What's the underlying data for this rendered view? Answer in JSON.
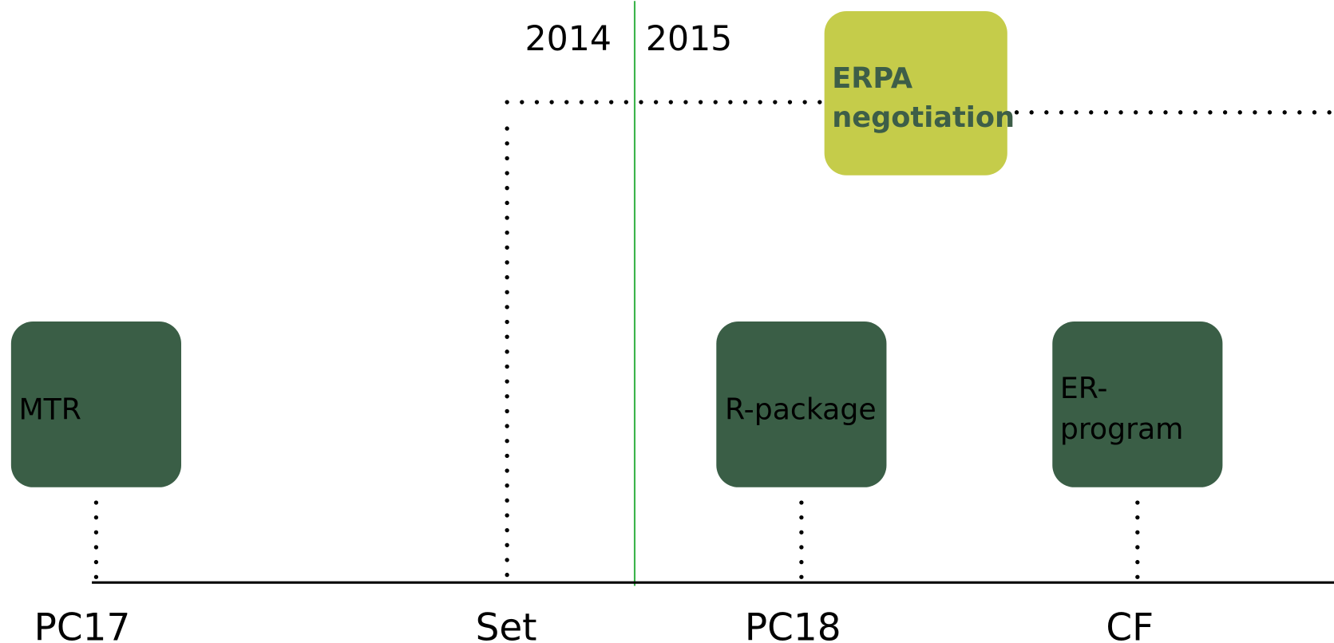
{
  "years": [
    "2014",
    "2015"
  ],
  "boxes": [
    {
      "lines": [
        "MTR"
      ]
    },
    {
      "lines": [
        "R-package"
      ]
    },
    {
      "lines": [
        "ER-",
        "program"
      ]
    },
    {
      "lines": [
        "ERPA",
        "negotiation"
      ]
    }
  ],
  "timeline_labels": [
    "PC17",
    "Set",
    "PC18",
    "CF"
  ]
}
